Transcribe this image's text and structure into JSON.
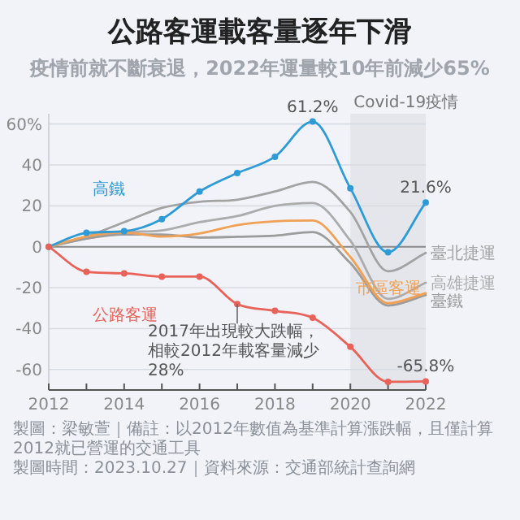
{
  "chart_data": {
    "type": "line",
    "title": "公路客運載客量逐年下滑",
    "subtitle": "疫情前就不斷衰退，2022年運量較10年前減少65%",
    "x": [
      2012,
      2013,
      2014,
      2015,
      2016,
      2017,
      2018,
      2019,
      2020,
      2021,
      2022
    ],
    "series": [
      {
        "name": "臺北捷運",
        "color": "#a3a3a3",
        "values": [
          0,
          5,
          12,
          19,
          22,
          23,
          27,
          31.7,
          17,
          -12,
          -3
        ]
      },
      {
        "name": "高雄捷運",
        "color": "#acacac",
        "values": [
          0,
          4,
          7,
          8,
          12,
          15,
          20,
          21.4,
          3,
          -25.5,
          -17.6
        ]
      },
      {
        "name": "臺鐵",
        "color": "#9c9c9c",
        "values": [
          0,
          4,
          6,
          6,
          4.5,
          4.9,
          5.4,
          7.2,
          -8,
          -28.7,
          -23.6
        ]
      },
      {
        "name": "市區客運",
        "color": "#f0a155",
        "values": [
          0,
          5,
          7,
          5,
          6.5,
          10.6,
          12.4,
          12.8,
          -5,
          -27.6,
          -22.7
        ]
      },
      {
        "name": "高鐵",
        "color": "#2e9bd6",
        "marker": "circle",
        "values": [
          0,
          6.8,
          7.6,
          13.5,
          27,
          36,
          44,
          61.2,
          28.6,
          -2.7,
          21.6
        ],
        "value_labels": [
          null,
          null,
          null,
          null,
          null,
          null,
          null,
          "61.2%",
          null,
          null,
          "21.6%"
        ]
      },
      {
        "name": "公路客運",
        "color": "#e8625a",
        "marker": "circle",
        "values": [
          0,
          -12.2,
          -13,
          -14.6,
          -14.6,
          -28,
          -31.3,
          -34.7,
          -48.9,
          -66,
          -65.8
        ],
        "value_labels": [
          null,
          null,
          null,
          null,
          null,
          null,
          null,
          null,
          null,
          null,
          "-65.8%"
        ]
      }
    ],
    "xlim": [
      2012,
      2022
    ],
    "xticks": [
      2012,
      {
        "value": 2013,
        "label": null
      },
      2014,
      {
        "value": 2015,
        "label": null
      },
      2016,
      {
        "value": 2017,
        "label": null
      },
      2018,
      {
        "value": 2019,
        "label": null
      },
      2020,
      {
        "value": 2021,
        "label": null
      },
      2022
    ],
    "ylim": [
      -70,
      65
    ],
    "yticks": [
      {
        "value": 60,
        "label": "60%"
      },
      40,
      20,
      0,
      -20,
      -40,
      -60
    ],
    "grid": "y",
    "legend": false,
    "ref_lines": [
      {
        "axis": "y",
        "value": 0,
        "color": "#8a8a8a"
      }
    ],
    "bands": [
      {
        "axis": "x",
        "from": 2020,
        "to": 2022,
        "label": "Covid-19疫情",
        "color": "#e4e6ec"
      }
    ],
    "annotations": [
      {
        "text": "2017年出現較大跌幅，相較2012年載客量減少28%",
        "x": 2017,
        "y": -28
      },
      "製圖：梁敏萱｜備註：以2012年數值為基準計算漲跌幅，且僅計算2012就已營運的交通工具",
      "製圖時間：2023.10.27｜資料來源：交通部統計查詢網"
    ]
  }
}
